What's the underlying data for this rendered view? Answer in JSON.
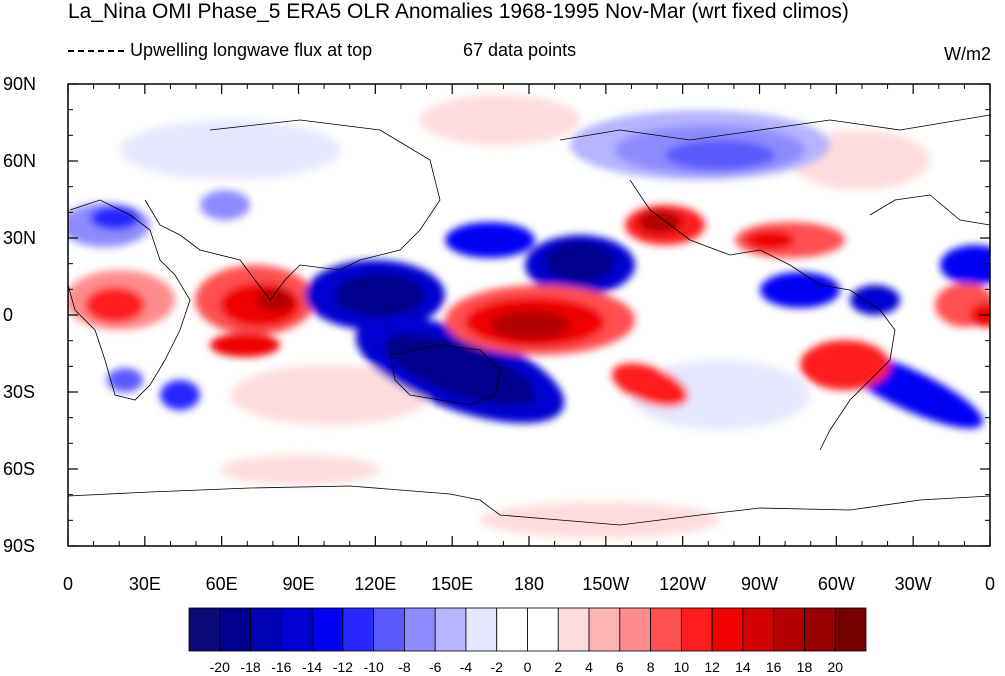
{
  "title": "La_Nina OMI Phase_5 ERA5 OLR Anomalies 1968-1995 Nov-Mar (wrt fixed climos)",
  "legend_text": "Upwelling longwave flux at top",
  "data_points_text": "67 data points",
  "units": "W/m2",
  "lat_labels": [
    "90N",
    "60N",
    "30N",
    "0",
    "30S",
    "60S",
    "90S"
  ],
  "lon_labels": [
    "0",
    "30E",
    "60E",
    "90E",
    "120E",
    "150E",
    "180",
    "150W",
    "120W",
    "90W",
    "60W",
    "30W",
    "0"
  ],
  "colorbar": {
    "labels": [
      "-20",
      "-18",
      "-16",
      "-14",
      "-12",
      "-10",
      "-8",
      "-6",
      "-4",
      "-2",
      "0",
      "2",
      "4",
      "6",
      "8",
      "10",
      "12",
      "14",
      "16",
      "18",
      "20"
    ],
    "colors": [
      "#0a0a78",
      "#00008c",
      "#0000b4",
      "#0000d2",
      "#0000f5",
      "#2828ff",
      "#5a5aff",
      "#8c8cff",
      "#b4b4ff",
      "#e6e6ff",
      "#ffffff",
      "#ffffff",
      "#ffdcdc",
      "#ffb4b4",
      "#ff8c8c",
      "#ff5050",
      "#ff1e1e",
      "#f00000",
      "#d20000",
      "#b40000",
      "#960000",
      "#780000"
    ]
  }
}
